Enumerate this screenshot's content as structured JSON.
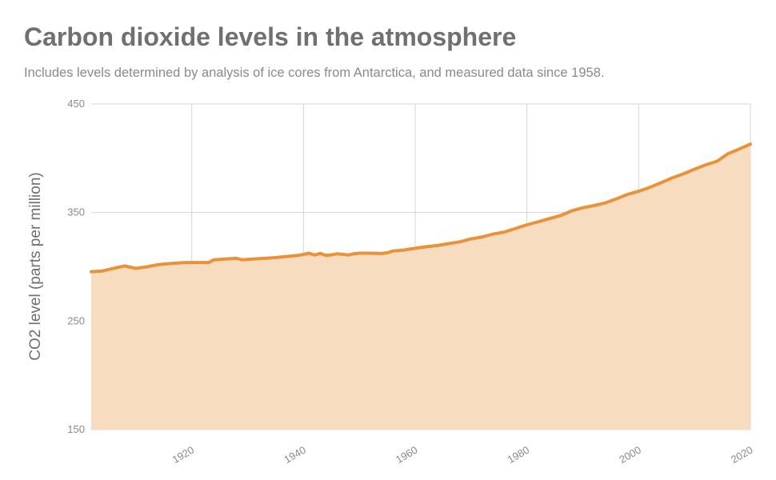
{
  "chart_data": {
    "type": "area",
    "title": "Carbon dioxide levels in the atmosphere",
    "subtitle": "Includes levels determined by analysis of ice cores from Antarctica, and measured data since 1958.",
    "xlabel": "",
    "ylabel": "CO2 level (parts per million)",
    "xlim": [
      1902,
      2020
    ],
    "ylim": [
      150,
      450
    ],
    "x_ticks": [
      1920,
      1940,
      1960,
      1980,
      2000,
      2020
    ],
    "y_ticks": [
      150,
      250,
      350,
      450
    ],
    "grid": true,
    "line_color": "#e8923a",
    "fill_color": "#f7dcc0",
    "grid_color": "#d6d6d6",
    "series": [
      {
        "x": [
          1902,
          1904,
          1906,
          1908,
          1910,
          1912,
          1914,
          1915,
          1917,
          1919,
          1921,
          1923,
          1924,
          1926,
          1928,
          1929,
          1931,
          1933,
          1935,
          1937,
          1939,
          1940,
          1941,
          1942,
          1943,
          1944,
          1945,
          1946,
          1947,
          1948,
          1949,
          1950,
          1952,
          1954,
          1955,
          1956,
          1958,
          1960,
          1962,
          1964,
          1966,
          1968,
          1970,
          1972,
          1974,
          1976,
          1978,
          1980,
          1982,
          1984,
          1986,
          1988,
          1990,
          1992,
          1994,
          1996,
          1998,
          2000,
          2002,
          2004,
          2006,
          2008,
          2010,
          2012,
          2014,
          2016,
          2018,
          2020
        ],
        "y": [
          295.5,
          296.2,
          298.5,
          300.8,
          298.5,
          300.0,
          302.0,
          302.5,
          303.3,
          304.0,
          304.0,
          303.9,
          306.5,
          307.2,
          307.8,
          306.5,
          307.2,
          307.8,
          308.5,
          309.5,
          310.5,
          311.5,
          312.5,
          310.8,
          312.3,
          310.5,
          311.0,
          312.0,
          311.5,
          310.8,
          312.0,
          312.5,
          312.5,
          312.2,
          313.0,
          314.5,
          315.5,
          317.0,
          318.5,
          319.6,
          321.4,
          323.0,
          325.7,
          327.5,
          330.2,
          332.1,
          335.4,
          338.7,
          341.4,
          344.4,
          347.2,
          351.5,
          354.4,
          356.4,
          358.8,
          362.6,
          366.7,
          369.6,
          373.2,
          377.5,
          381.9,
          385.6,
          389.9,
          393.9,
          397.2,
          404.2,
          408.5,
          413.0
        ]
      }
    ]
  }
}
